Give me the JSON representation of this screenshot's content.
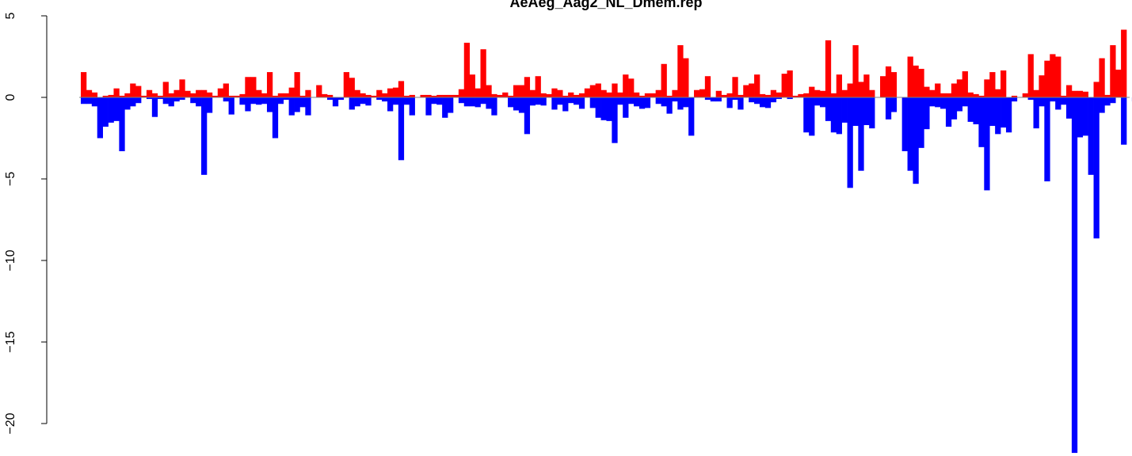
{
  "chart_data": {
    "type": "bar",
    "title": "AeAeg_Aag2_NL_Dmem.rep",
    "xlabel": "",
    "ylabel": "",
    "ylim": [
      -21.8,
      5
    ],
    "yticks": [
      5,
      0,
      -5,
      -10,
      -15,
      -20
    ],
    "ytick_labels": [
      "5",
      "0",
      "−5",
      "−10",
      "−15",
      "−20"
    ],
    "grid": false,
    "legend": "none",
    "series": [
      {
        "color": "#ff0000",
        "values": [
          1.55,
          0.45,
          0.3,
          0,
          0.1,
          0.15,
          0.55,
          0.1,
          0.25,
          0.85,
          0.7,
          0.1,
          0.45,
          0.25,
          0.1,
          0.95,
          0.25,
          0.45,
          1.1,
          0.4,
          0.25,
          0.45,
          0.45,
          0.3,
          0.1,
          0.55,
          0.85,
          0.1,
          0.1,
          0.2,
          1.25,
          1.25,
          0.45,
          0.25,
          1.55,
          0.1,
          0.25,
          0.25,
          0.6,
          1.55,
          0.1,
          0.45,
          0,
          0.75,
          0.2,
          0.15,
          0,
          0,
          1.55,
          1.2,
          0.45,
          0.25,
          0.15,
          0.1,
          0.45,
          0.25,
          0.55,
          0.6,
          1.0,
          0.1,
          0.15,
          0,
          0.15,
          0.15,
          0.1,
          0.15,
          0.15,
          0.15,
          0.15,
          0.5,
          3.35,
          1.4,
          0.55,
          2.95,
          0.75,
          0.2,
          0.15,
          0.3,
          0.1,
          0.75,
          0.75,
          1.25,
          0.45,
          1.3,
          0.25,
          0.2,
          0.55,
          0.45,
          0.1,
          0.3,
          0.15,
          0.25,
          0.55,
          0.75,
          0.85,
          0.45,
          0.3,
          0.85,
          0.3,
          1.4,
          1.15,
          0.3,
          0.1,
          0.25,
          0.25,
          0.45,
          2.05,
          0.1,
          0.45,
          3.2,
          2.4,
          0,
          0.45,
          0.5,
          1.3,
          0,
          0.4,
          0.15,
          0.25,
          1.25,
          0.15,
          0.75,
          0.85,
          1.4,
          0.2,
          0.15,
          0.45,
          0.3,
          1.45,
          1.65,
          0.1,
          0.2,
          0.25,
          0.65,
          0.45,
          0.4,
          3.5,
          0.25,
          1.4,
          0.45,
          0.85,
          3.2,
          0.95,
          1.4,
          0.45,
          0,
          1.3,
          1.9,
          1.55,
          0,
          0,
          2.5,
          1.95,
          1.75,
          0.65,
          0.45,
          0.85,
          0.25,
          0.25,
          0.85,
          1.1,
          1.6,
          0.3,
          0.2,
          0.1,
          1.1,
          1.55,
          0.5,
          1.65,
          0,
          0.1,
          0,
          0.25,
          2.65,
          0.45,
          1.35,
          2.25,
          2.65,
          2.5,
          0.1,
          0.75,
          0.4,
          0.4,
          0.35,
          0,
          0.95,
          2.4,
          0.15,
          3.2,
          1.7,
          4.15
        ]
      },
      {
        "color": "#0000ff",
        "values": [
          -0.4,
          -0.4,
          -0.55,
          -2.5,
          -1.8,
          -1.55,
          -1.45,
          -3.3,
          -0.75,
          -0.55,
          -0.35,
          0,
          -0.1,
          -1.2,
          -0.1,
          -0.4,
          -0.55,
          -0.25,
          -0.15,
          0,
          -0.35,
          -0.55,
          -4.75,
          -0.95,
          0,
          0,
          -0.25,
          -1.05,
          0,
          -0.45,
          -0.85,
          -0.4,
          -0.45,
          -0.4,
          -0.9,
          -2.5,
          -0.4,
          -0.15,
          -1.1,
          -0.9,
          -0.6,
          -1.1,
          0,
          0,
          0,
          -0.15,
          -0.55,
          -0.15,
          0,
          -0.75,
          -0.55,
          -0.4,
          -0.5,
          0,
          -0.15,
          -0.25,
          -0.85,
          -0.45,
          -3.85,
          -0.45,
          -1.1,
          0,
          0,
          -1.1,
          -0.4,
          -0.45,
          -1.25,
          -0.95,
          0,
          -0.35,
          -0.55,
          -0.55,
          -0.6,
          -0.4,
          -0.7,
          -1.1,
          0,
          0,
          -0.6,
          -0.8,
          -0.95,
          -2.25,
          -0.5,
          -0.45,
          -0.5,
          0,
          -0.75,
          -0.45,
          -0.85,
          -0.35,
          -0.45,
          -0.7,
          0,
          -0.65,
          -1.25,
          -1.4,
          -1.45,
          -2.8,
          -0.45,
          -1.25,
          -0.4,
          -0.55,
          -0.7,
          -0.65,
          0,
          -0.4,
          -0.55,
          -1.0,
          -0.25,
          -0.75,
          -0.6,
          -2.35,
          0,
          0,
          -0.15,
          -0.25,
          -0.25,
          0,
          -0.65,
          -0.15,
          -0.75,
          0,
          -0.3,
          -0.4,
          -0.6,
          -0.65,
          -0.3,
          -0.1,
          0,
          -0.1,
          0,
          0,
          -2.15,
          -2.35,
          -0.5,
          -0.6,
          -1.45,
          -2.15,
          -2.25,
          -1.55,
          -5.55,
          -1.75,
          -4.5,
          -1.7,
          -1.9,
          0,
          0,
          -1.35,
          -0.9,
          0,
          -3.3,
          -4.5,
          -5.3,
          -3.1,
          -1.95,
          -0.55,
          -0.6,
          -0.7,
          -1.8,
          -1.35,
          -0.85,
          -0.55,
          -1.5,
          -1.65,
          -3.05,
          -5.7,
          -1.75,
          -2.25,
          -1.85,
          -2.15,
          -0.25,
          0,
          0,
          -0.15,
          -1.9,
          -0.55,
          -5.15,
          -0.25,
          -0.75,
          -0.45,
          -1.3,
          -21.8,
          -2.45,
          -2.35,
          -4.75,
          -8.65,
          -0.95,
          -0.5,
          -0.35,
          0,
          -2.9,
          0,
          -0.25,
          -0.35,
          -1.8
        ]
      }
    ]
  }
}
